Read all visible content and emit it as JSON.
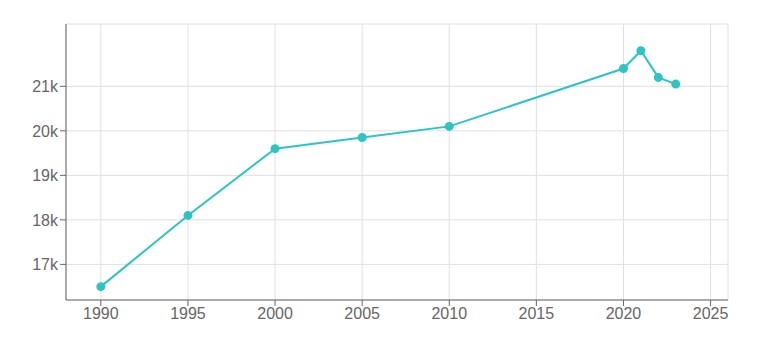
{
  "chart_data": {
    "type": "line",
    "x": [
      1990,
      1995,
      2000,
      2005,
      2010,
      2020,
      2021,
      2022,
      2023
    ],
    "values": [
      16500,
      18100,
      19600,
      19850,
      20100,
      21400,
      21800,
      21200,
      21050
    ],
    "color": "#2EC4C4",
    "marker": "circle",
    "xlim": [
      1988,
      2026
    ],
    "ylim": [
      16200,
      22400
    ],
    "xticks": [
      1990,
      1995,
      2000,
      2005,
      2010,
      2015,
      2020,
      2025
    ],
    "yticks": [
      {
        "value": 17000,
        "label": "17k"
      },
      {
        "value": 18000,
        "label": "18k"
      },
      {
        "value": 19000,
        "label": "19k"
      },
      {
        "value": 20000,
        "label": "20k"
      },
      {
        "value": 21000,
        "label": "21k"
      }
    ],
    "grid": true
  }
}
